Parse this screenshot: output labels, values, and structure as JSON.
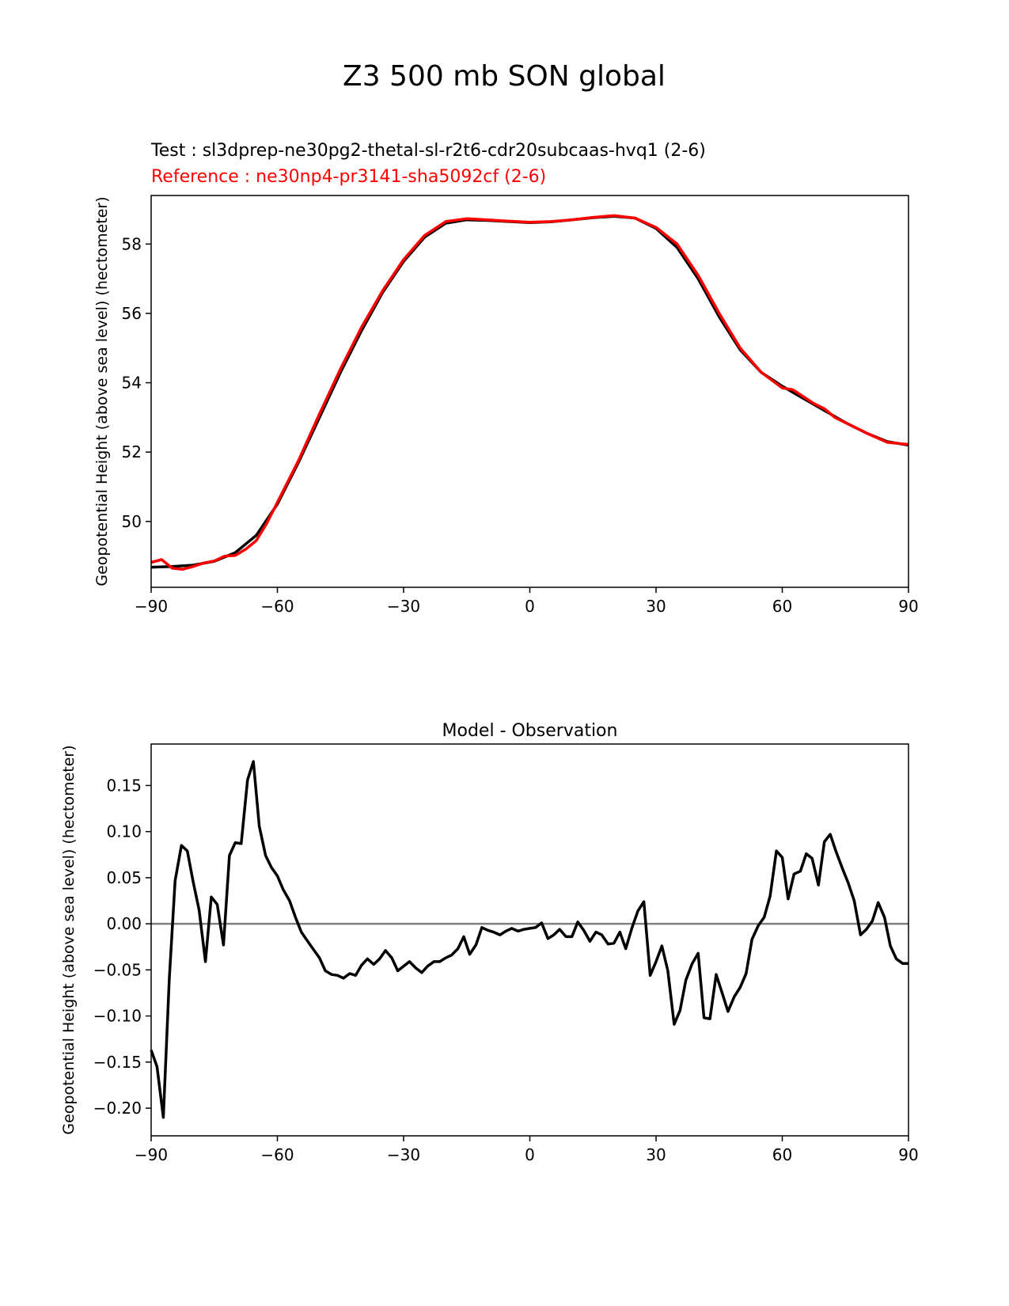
{
  "figure": {
    "title": "Z3 500 mb SON global",
    "test_label": "Test : sl3dprep-ne30pg2-thetal-sl-r2t6-cdr20subcaas-hvq1 (2-6)",
    "reference_label": "Reference : ne30np4-pr3141-sha5092cf (2-6)"
  },
  "colors": {
    "test": "#000000",
    "reference": "#ff0000",
    "zero_line": "#808080",
    "axes": "#000000"
  },
  "chart_data": [
    {
      "type": "line",
      "name": "top",
      "title": "",
      "xlabel": "",
      "ylabel": "Geopotential Height (above sea level) (hectometer)",
      "xlim": [
        -90,
        90
      ],
      "ylim": [
        48.1,
        59.4
      ],
      "xticks": [
        -90,
        -60,
        -30,
        0,
        30,
        60,
        90
      ],
      "xtick_labels": [
        "−90",
        "−60",
        "−30",
        "0",
        "30",
        "60",
        "90"
      ],
      "yticks": [
        50,
        52,
        54,
        56,
        58
      ],
      "ytick_labels": [
        "50",
        "52",
        "54",
        "56",
        "58"
      ],
      "series": [
        {
          "name": "Test",
          "color": "#000000",
          "x": [
            -90,
            -85,
            -80,
            -75,
            -70,
            -65,
            -60,
            -55,
            -50,
            -45,
            -40,
            -35,
            -30,
            -25,
            -20,
            -15,
            -10,
            -5,
            0,
            5,
            10,
            15,
            20,
            25,
            30,
            35,
            40,
            45,
            50,
            55,
            60,
            65,
            70,
            75,
            80,
            85,
            90
          ],
          "y": [
            48.68,
            48.7,
            48.74,
            48.85,
            49.1,
            49.6,
            50.5,
            51.7,
            53.0,
            54.3,
            55.5,
            56.6,
            57.5,
            58.2,
            58.6,
            58.7,
            58.68,
            58.65,
            58.62,
            58.64,
            58.7,
            58.76,
            58.8,
            58.75,
            58.45,
            57.9,
            57.0,
            55.9,
            54.95,
            54.3,
            53.9,
            53.55,
            53.2,
            52.85,
            52.55,
            52.3,
            52.2
          ]
        },
        {
          "name": "Reference",
          "color": "#ff0000",
          "x": [
            -90,
            -87.5,
            -85,
            -82.5,
            -80,
            -77.5,
            -75,
            -72.5,
            -70,
            -67.5,
            -65,
            -62.5,
            -60,
            -55,
            -50,
            -45,
            -40,
            -35,
            -30,
            -25,
            -20,
            -15,
            -10,
            -5,
            0,
            5,
            10,
            15,
            20,
            25,
            30,
            35,
            40,
            45,
            50,
            55,
            60,
            62.5,
            65,
            67.5,
            70,
            72.5,
            75,
            80,
            85,
            90
          ],
          "y": [
            48.82,
            48.9,
            48.65,
            48.62,
            48.7,
            48.8,
            48.86,
            49.0,
            49.02,
            49.2,
            49.45,
            49.95,
            50.55,
            51.75,
            53.1,
            54.4,
            55.6,
            56.65,
            57.55,
            58.25,
            58.65,
            58.73,
            58.7,
            58.66,
            58.63,
            58.65,
            58.7,
            58.77,
            58.82,
            58.75,
            58.48,
            58.0,
            57.1,
            56.0,
            55.0,
            54.3,
            53.85,
            53.8,
            53.6,
            53.4,
            53.25,
            53.0,
            52.85,
            52.55,
            52.28,
            52.22
          ]
        }
      ]
    },
    {
      "type": "line",
      "name": "bottom",
      "title": "Model - Observation",
      "xlabel": "",
      "ylabel": "Geopotential Height (above sea level) (hectometer)",
      "xlim": [
        -90,
        90
      ],
      "ylim": [
        -0.23,
        0.195
      ],
      "xticks": [
        -90,
        -60,
        -30,
        0,
        30,
        60,
        90
      ],
      "xtick_labels": [
        "−90",
        "−60",
        "−30",
        "0",
        "30",
        "60",
        "90"
      ],
      "yticks": [
        -0.2,
        -0.15,
        -0.1,
        -0.05,
        0.0,
        0.05,
        0.1,
        0.15
      ],
      "ytick_labels": [
        "−0.20",
        "−0.15",
        "−0.10",
        "−0.05",
        "0.00",
        "0.05",
        "0.10",
        "0.15"
      ],
      "zero_line": 0,
      "series": [
        {
          "name": "Model - Observation",
          "color": "#000000",
          "x": [
            -90,
            -88.6,
            -87.1,
            -85.7,
            -84.3,
            -82.8,
            -81.4,
            -80,
            -78.6,
            -77.1,
            -75.7,
            -74.3,
            -72.8,
            -71.4,
            -70,
            -68.6,
            -67.1,
            -65.7,
            -64.3,
            -62.8,
            -61.4,
            -60,
            -58.6,
            -57.1,
            -55.7,
            -54.3,
            -52.8,
            -51.4,
            -50,
            -48.6,
            -47.1,
            -45.7,
            -44.3,
            -42.8,
            -41.4,
            -40,
            -38.6,
            -37.1,
            -35.7,
            -34.3,
            -32.8,
            -31.4,
            -30,
            -28.6,
            -27.1,
            -25.7,
            -24.3,
            -22.8,
            -21.4,
            -20,
            -18.6,
            -17.1,
            -15.7,
            -14.3,
            -12.8,
            -11.4,
            -10,
            -8.6,
            -7.1,
            -5.7,
            -4.3,
            -2.8,
            -1.4,
            0,
            1.4,
            2.8,
            4.3,
            5.7,
            7.1,
            8.6,
            10,
            11.4,
            12.8,
            14.3,
            15.7,
            17.1,
            18.6,
            20,
            21.4,
            22.8,
            24.3,
            25.7,
            27.1,
            28.6,
            30,
            31.4,
            32.8,
            34.3,
            35.7,
            37.1,
            38.6,
            40,
            41.4,
            42.8,
            44.3,
            45.7,
            47.1,
            48.6,
            50,
            51.4,
            52.8,
            54.3,
            55.7,
            57.1,
            58.6,
            60,
            61.4,
            62.8,
            64.3,
            65.7,
            67.1,
            68.6,
            70,
            71.4,
            72.8,
            74.3,
            75.7,
            77.1,
            78.6,
            80,
            81.4,
            82.8,
            84.3,
            85.7,
            87.1,
            88.6,
            90
          ],
          "y": [
            -0.137,
            -0.155,
            -0.21,
            -0.06,
            0.047,
            0.085,
            0.079,
            0.045,
            0.015,
            -0.041,
            0.029,
            0.021,
            -0.023,
            0.074,
            0.088,
            0.087,
            0.156,
            0.176,
            0.106,
            0.074,
            0.061,
            0.052,
            0.037,
            0.025,
            0.007,
            -0.009,
            -0.019,
            -0.028,
            -0.037,
            -0.051,
            -0.055,
            -0.056,
            -0.059,
            -0.054,
            -0.056,
            -0.045,
            -0.038,
            -0.044,
            -0.038,
            -0.029,
            -0.037,
            -0.051,
            -0.046,
            -0.041,
            -0.048,
            -0.053,
            -0.046,
            -0.041,
            -0.041,
            -0.037,
            -0.034,
            -0.027,
            -0.014,
            -0.033,
            -0.023,
            -0.004,
            -0.007,
            -0.009,
            -0.012,
            -0.008,
            -0.005,
            -0.008,
            -0.006,
            -0.005,
            -0.004,
            0.001,
            -0.016,
            -0.012,
            -0.006,
            -0.014,
            -0.014,
            0.002,
            -0.007,
            -0.019,
            -0.009,
            -0.012,
            -0.022,
            -0.021,
            -0.009,
            -0.027,
            -0.004,
            0.014,
            0.024,
            -0.056,
            -0.041,
            -0.024,
            -0.051,
            -0.109,
            -0.094,
            -0.061,
            -0.043,
            -0.032,
            -0.102,
            -0.103,
            -0.055,
            -0.075,
            -0.095,
            -0.079,
            -0.069,
            -0.054,
            -0.017,
            -0.002,
            0.007,
            0.03,
            0.079,
            0.072,
            0.027,
            0.054,
            0.057,
            0.076,
            0.071,
            0.042,
            0.089,
            0.097,
            0.078,
            0.06,
            0.044,
            0.025,
            -0.012,
            -0.006,
            0.003,
            0.023,
            0.007,
            -0.024,
            -0.038,
            -0.043,
            -0.043
          ]
        }
      ]
    }
  ]
}
